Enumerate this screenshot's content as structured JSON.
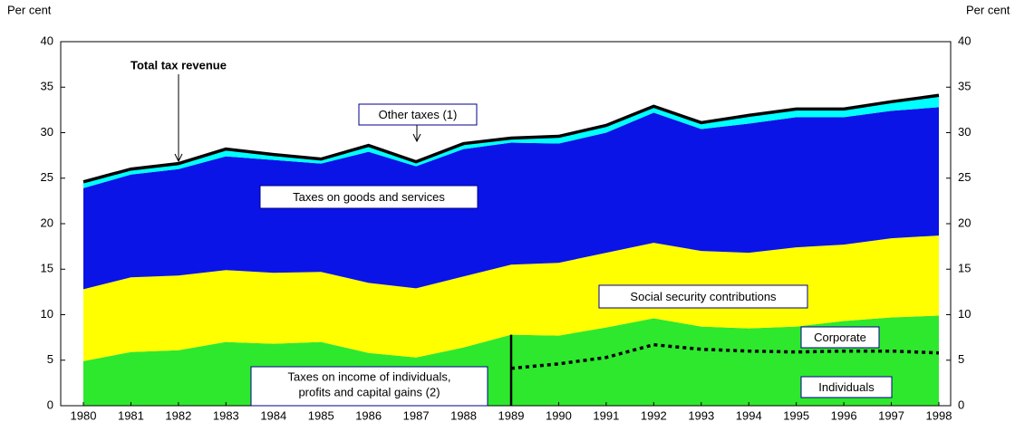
{
  "chart_data": {
    "type": "area",
    "y_label": "Per cent",
    "y2_label": "Per cent",
    "categories": [
      "1980",
      "1981",
      "1982",
      "1983",
      "1984",
      "1985",
      "1986",
      "1987",
      "1988",
      "1989",
      "1990",
      "1991",
      "1992",
      "1993",
      "1994",
      "1995",
      "1996",
      "1997",
      "1998"
    ],
    "series": [
      {
        "name": [
          "Taxes on income of individuals,",
          "profits and capital gains (2)"
        ],
        "color": "#2ee82e",
        "values": [
          4.9,
          5.9,
          6.1,
          7.0,
          6.8,
          7.0,
          5.8,
          5.3,
          6.4,
          7.8,
          7.7,
          8.6,
          9.6,
          8.7,
          8.5,
          8.7,
          9.3,
          9.7,
          9.9
        ]
      },
      {
        "name": "Social security contributions",
        "color": "#ffff00",
        "values": [
          7.9,
          8.2,
          8.2,
          7.9,
          7.8,
          7.7,
          7.7,
          7.6,
          7.8,
          7.7,
          8.0,
          8.2,
          8.3,
          8.3,
          8.3,
          8.7,
          8.4,
          8.7,
          8.8
        ]
      },
      {
        "name": "Taxes on goods and services",
        "color": "#0a14e6",
        "values": [
          11.1,
          11.3,
          11.7,
          12.5,
          12.4,
          11.9,
          14.4,
          13.4,
          14.0,
          13.4,
          13.1,
          13.2,
          14.3,
          13.4,
          14.2,
          14.3,
          14.0,
          14.0,
          14.1
        ]
      },
      {
        "name": "Other taxes (1)",
        "color": "#00ffff",
        "values": [
          0.7,
          0.6,
          0.6,
          0.8,
          0.6,
          0.5,
          0.7,
          0.5,
          0.6,
          0.5,
          0.8,
          0.8,
          0.7,
          0.7,
          0.9,
          0.9,
          0.9,
          1.0,
          1.3
        ]
      }
    ],
    "total": {
      "name": "Total tax revenue",
      "color": "#000000",
      "values": [
        24.6,
        26.0,
        26.6,
        28.2,
        27.6,
        27.1,
        28.6,
        26.8,
        28.8,
        29.4,
        29.6,
        30.8,
        32.9,
        31.1,
        31.9,
        32.6,
        32.6,
        33.4,
        34.1
      ]
    },
    "individuals": {
      "name": "Individuals",
      "color": "#000000",
      "values": [
        null,
        null,
        null,
        null,
        null,
        null,
        null,
        null,
        null,
        4.1,
        4.6,
        5.3,
        6.7,
        6.2,
        6.0,
        5.9,
        6.0,
        6.0,
        5.8
      ]
    },
    "corporate_label": "Corporate",
    "ylim": [
      0,
      40
    ],
    "yticks": [
      0,
      5,
      10,
      15,
      20,
      25,
      30,
      35,
      40
    ],
    "y2lim": [
      0,
      40
    ],
    "y2ticks": [
      0,
      5,
      10,
      15,
      20,
      25,
      30,
      35,
      40
    ]
  }
}
